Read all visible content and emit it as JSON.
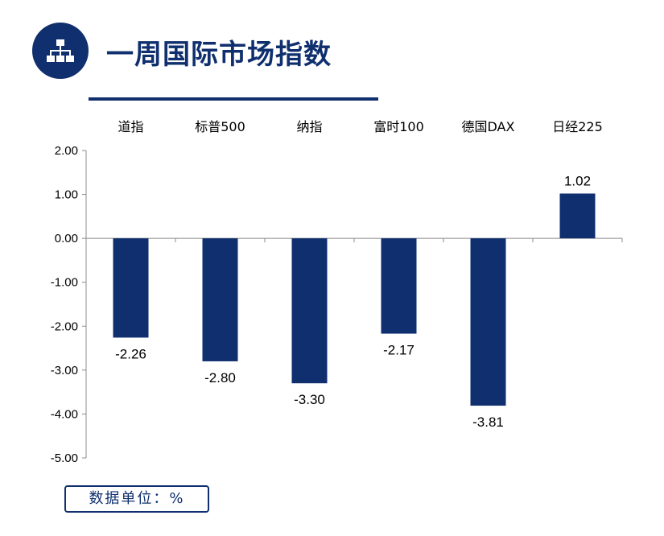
{
  "header": {
    "title": "一周国际市场指数",
    "icon": "hierarchy-icon",
    "accent_color": "#0f2f6e"
  },
  "unit_note": "数据单位：%",
  "chart_data": {
    "type": "bar",
    "categories": [
      "道指",
      "标普500",
      "纳指",
      "富时100",
      "德国DAX",
      "日经225"
    ],
    "values": [
      -2.26,
      -2.8,
      -3.3,
      -2.17,
      -3.81,
      1.02
    ],
    "value_labels": [
      "-2.26",
      "-2.80",
      "-3.30",
      "-2.17",
      "-3.81",
      "1.02"
    ],
    "ylim": [
      -5,
      2
    ],
    "yticks": [
      "2.00",
      "1.00",
      "0.00",
      "-1.00",
      "-2.00",
      "-3.00",
      "-4.00",
      "-5.00"
    ],
    "category_labels_position": "top",
    "grid": false,
    "bar_color": "#0f2f6e"
  }
}
